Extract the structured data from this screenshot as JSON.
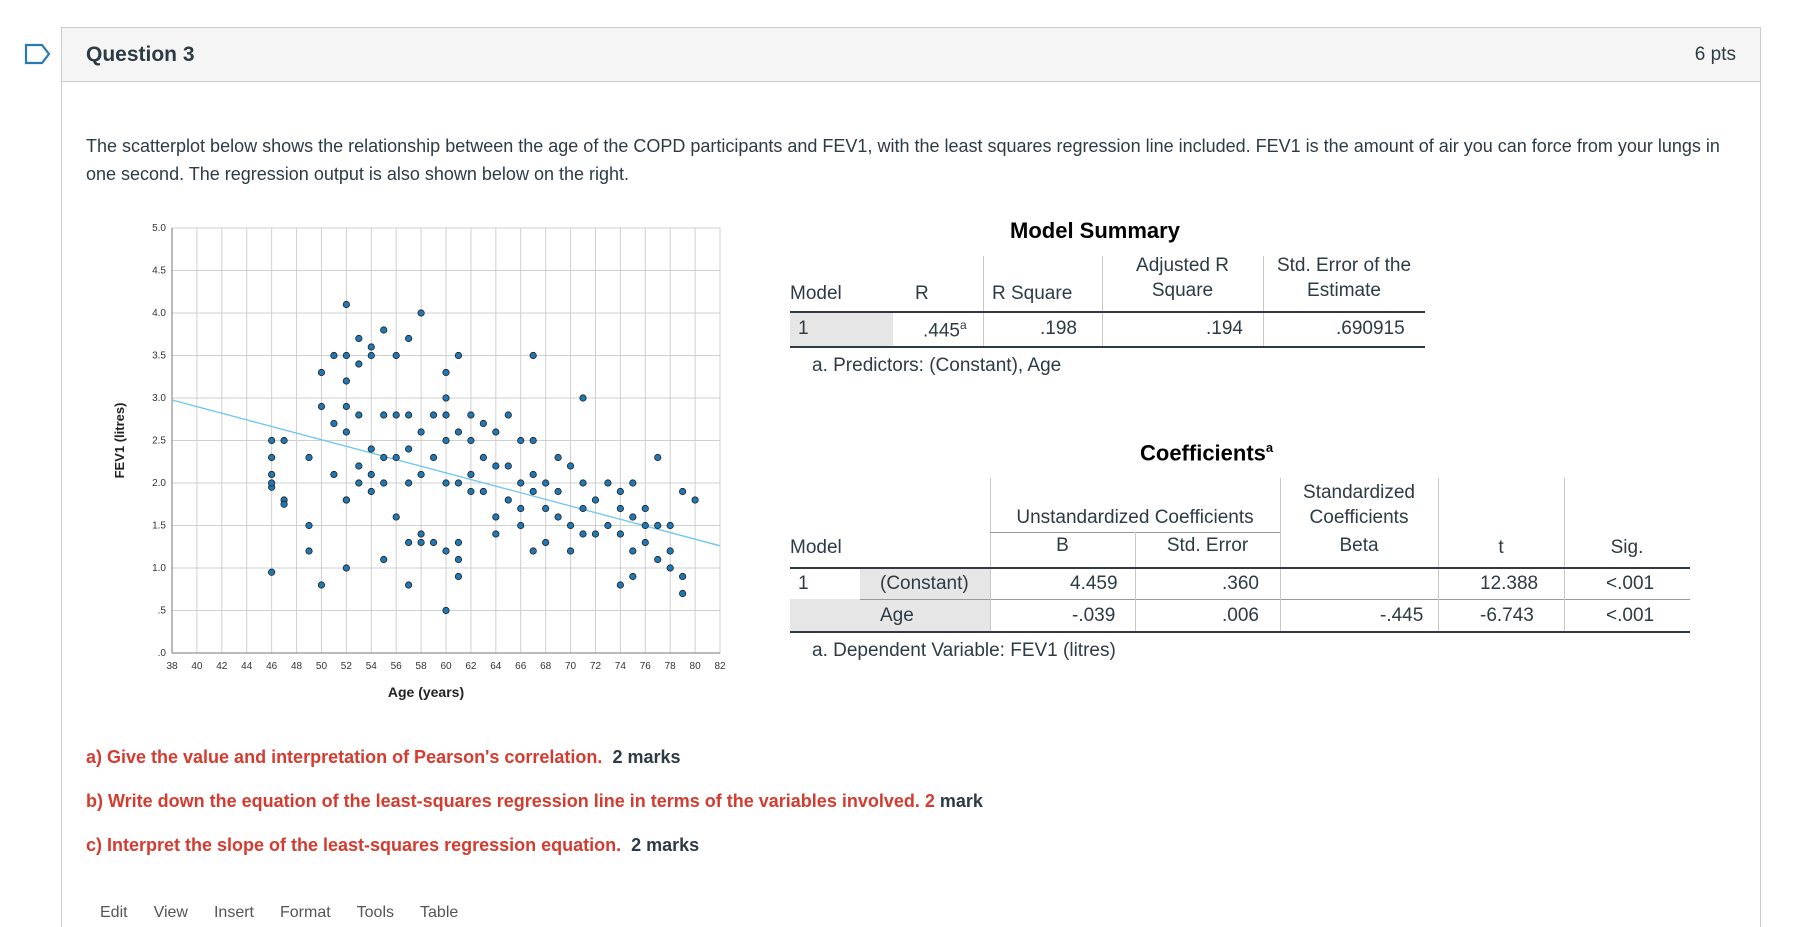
{
  "question": {
    "title": "Question 3",
    "points": "6 pts",
    "prompt": "The scatterplot below shows the relationship between the age of the COPD participants and  FEV1, with the least squares regression line included.  FEV1 is the amount of air you can force from your lungs in one second. The regression output is also shown below on the right.",
    "parts": [
      {
        "label": "a) Give the value and interpretation of Pearson's correlation.",
        "marks": "2 marks"
      },
      {
        "label": "b) Write down the equation of the least-squares regression line in terms of the variables involved. 2",
        "marks": "mark"
      },
      {
        "label": "c) Interpret the slope of the least-squares regression equation.",
        "marks": "2 marks"
      }
    ]
  },
  "toolbar": {
    "items": [
      "Edit",
      "View",
      "Insert",
      "Format",
      "Tools",
      "Table"
    ]
  },
  "colors": {
    "point_fill": "#1f78b4",
    "regression_line": "#6ec6ee",
    "flag": "#2a7ab0"
  },
  "icons": {
    "flag": "flag-icon"
  },
  "chart_data": {
    "type": "scatter",
    "xlabel": "Age (years)",
    "ylabel": "FEV1 (litres)",
    "xlim": [
      38,
      82
    ],
    "ylim": [
      0,
      5.0
    ],
    "xticks": [
      "38",
      "40",
      "42",
      "44",
      "46",
      "48",
      "50",
      "52",
      "54",
      "56",
      "58",
      "60",
      "62",
      "64",
      "66",
      "68",
      "70",
      "72",
      "74",
      "76",
      "78",
      "80",
      "82"
    ],
    "yticks": [
      ".0",
      ".5",
      "1.0",
      "1.5",
      "2.0",
      "2.5",
      "3.0",
      "3.5",
      "4.0",
      "4.5",
      "5.0"
    ],
    "regression": {
      "intercept": 4.459,
      "slope": -0.039
    },
    "points": [
      [
        46,
        2.5
      ],
      [
        46,
        2.3
      ],
      [
        46,
        2.1
      ],
      [
        46,
        1.95
      ],
      [
        46,
        2.0
      ],
      [
        46,
        0.95
      ],
      [
        47,
        2.5
      ],
      [
        47,
        1.8
      ],
      [
        47,
        1.75
      ],
      [
        49,
        2.3
      ],
      [
        49,
        1.5
      ],
      [
        49,
        1.2
      ],
      [
        50,
        3.3
      ],
      [
        50,
        2.9
      ],
      [
        50,
        0.8
      ],
      [
        51,
        3.5
      ],
      [
        51,
        2.1
      ],
      [
        51,
        2.7
      ],
      [
        52,
        4.1
      ],
      [
        52,
        3.5
      ],
      [
        52,
        3.2
      ],
      [
        52,
        2.9
      ],
      [
        52,
        2.6
      ],
      [
        52,
        1.8
      ],
      [
        52,
        1.0
      ],
      [
        52,
        1.8
      ],
      [
        53,
        3.7
      ],
      [
        53,
        3.4
      ],
      [
        53,
        2.8
      ],
      [
        53,
        2.2
      ],
      [
        53,
        2.0
      ],
      [
        54,
        3.6
      ],
      [
        54,
        3.5
      ],
      [
        54,
        2.4
      ],
      [
        54,
        1.9
      ],
      [
        54,
        2.1
      ],
      [
        55,
        3.8
      ],
      [
        55,
        2.8
      ],
      [
        55,
        2.3
      ],
      [
        55,
        2.0
      ],
      [
        55,
        1.1
      ],
      [
        56,
        3.5
      ],
      [
        56,
        2.8
      ],
      [
        56,
        2.3
      ],
      [
        56,
        1.6
      ],
      [
        57,
        3.7
      ],
      [
        57,
        2.8
      ],
      [
        57,
        2.4
      ],
      [
        57,
        2.0
      ],
      [
        57,
        1.3
      ],
      [
        57,
        0.8
      ],
      [
        58,
        4.0
      ],
      [
        58,
        2.6
      ],
      [
        58,
        2.1
      ],
      [
        58,
        1.4
      ],
      [
        58,
        1.3
      ],
      [
        59,
        2.8
      ],
      [
        59,
        2.3
      ],
      [
        59,
        1.3
      ],
      [
        60,
        3.0
      ],
      [
        60,
        2.8
      ],
      [
        60,
        2.5
      ],
      [
        60,
        2.0
      ],
      [
        60,
        1.2
      ],
      [
        60,
        0.5
      ],
      [
        60,
        3.3
      ],
      [
        61,
        3.5
      ],
      [
        61,
        2.6
      ],
      [
        61,
        2.0
      ],
      [
        61,
        1.3
      ],
      [
        61,
        1.1
      ],
      [
        61,
        0.9
      ],
      [
        62,
        2.8
      ],
      [
        62,
        2.5
      ],
      [
        62,
        2.1
      ],
      [
        62,
        1.9
      ],
      [
        63,
        2.7
      ],
      [
        63,
        2.3
      ],
      [
        63,
        1.9
      ],
      [
        64,
        2.6
      ],
      [
        64,
        2.2
      ],
      [
        64,
        1.6
      ],
      [
        64,
        1.4
      ],
      [
        65,
        2.8
      ],
      [
        65,
        2.2
      ],
      [
        65,
        1.8
      ],
      [
        66,
        2.5
      ],
      [
        66,
        2.0
      ],
      [
        66,
        1.7
      ],
      [
        66,
        1.5
      ],
      [
        67,
        3.5
      ],
      [
        67,
        2.5
      ],
      [
        67,
        2.1
      ],
      [
        67,
        1.9
      ],
      [
        67,
        1.2
      ],
      [
        68,
        2.0
      ],
      [
        68,
        1.7
      ],
      [
        68,
        1.3
      ],
      [
        69,
        2.3
      ],
      [
        69,
        1.9
      ],
      [
        69,
        1.6
      ],
      [
        70,
        2.2
      ],
      [
        70,
        1.5
      ],
      [
        70,
        1.2
      ],
      [
        71,
        3.0
      ],
      [
        71,
        2.0
      ],
      [
        71,
        1.7
      ],
      [
        71,
        1.4
      ],
      [
        72,
        1.8
      ],
      [
        72,
        1.4
      ],
      [
        73,
        2.0
      ],
      [
        73,
        1.5
      ],
      [
        74,
        1.9
      ],
      [
        74,
        1.7
      ],
      [
        74,
        1.4
      ],
      [
        74,
        0.8
      ],
      [
        75,
        1.6
      ],
      [
        75,
        1.2
      ],
      [
        75,
        0.9
      ],
      [
        75,
        2.0
      ],
      [
        76,
        1.7
      ],
      [
        76,
        1.5
      ],
      [
        76,
        1.3
      ],
      [
        77,
        2.3
      ],
      [
        77,
        1.5
      ],
      [
        77,
        1.1
      ],
      [
        78,
        1.5
      ],
      [
        78,
        1.2
      ],
      [
        78,
        1.0
      ],
      [
        79,
        1.9
      ],
      [
        79,
        0.9
      ],
      [
        79,
        0.7
      ],
      [
        80,
        1.8
      ]
    ]
  },
  "model_summary": {
    "title": "Model Summary",
    "headers": [
      "Model",
      "R",
      "R Square",
      "Adjusted R\nSquare",
      "Std. Error of the\nEstimate"
    ],
    "h_model": "Model",
    "h_r": "R",
    "h_rsq": "R Square",
    "h_adj1": "Adjusted R",
    "h_adj2": "Square",
    "h_se1": "Std. Error of the",
    "h_se2": "Estimate",
    "row": {
      "model": "1",
      "r": ".445",
      "r_sup": "a",
      "rsq": ".198",
      "adj": ".194",
      "se": ".690915"
    },
    "footnote": "a. Predictors: (Constant), Age"
  },
  "coefficients": {
    "title": "Coefficients",
    "title_sup": "a",
    "h_unstd": "Unstandardized Coefficients",
    "h_std1": "Standardized",
    "h_std2": "Coefficients",
    "h_model": "Model",
    "h_b": "B",
    "h_se": "Std. Error",
    "h_beta": "Beta",
    "h_t": "t",
    "h_sig": "Sig.",
    "rows": [
      {
        "model": "1",
        "term": "(Constant)",
        "b": "4.459",
        "se": ".360",
        "beta": "",
        "t": "12.388",
        "sig": "<.001"
      },
      {
        "model": "",
        "term": "Age",
        "b": "-.039",
        "se": ".006",
        "beta": "-.445",
        "t": "-6.743",
        "sig": "<.001"
      }
    ],
    "footnote": "a. Dependent Variable: FEV1 (litres)"
  }
}
